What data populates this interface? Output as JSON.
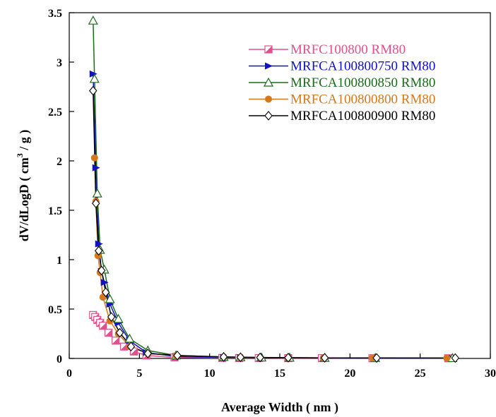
{
  "chart_data": {
    "type": "line",
    "xlabel": "Average Width ( nm )",
    "ylabel_main": "dV/dLogD ( cm",
    "ylabel_sup": "3",
    "ylabel_tail": " / g )",
    "xlim": [
      0,
      30
    ],
    "ylim": [
      0,
      3.5
    ],
    "xticks": [
      0,
      5,
      10,
      15,
      20,
      25,
      30
    ],
    "yticks": [
      0,
      0.5,
      1,
      1.5,
      2,
      2.5,
      3,
      3.5
    ],
    "xtick_labels": [
      "0",
      "5",
      "10",
      "15",
      "20",
      "25",
      "30"
    ],
    "ytick_labels": [
      "0",
      "0.5",
      "1",
      "1.5",
      "2",
      "2.5",
      "3",
      "3.5"
    ],
    "grid": false,
    "legend_position": "top-right",
    "series": [
      {
        "name": "MRFC100800 RM80",
        "color": "#e0508c",
        "marker": "half-square",
        "x": [
          1.7,
          1.85,
          2.0,
          2.2,
          2.4,
          2.8,
          3.3,
          3.9,
          4.6,
          5.5,
          7.5,
          10.9,
          12.1,
          13.5,
          15.6,
          18.0,
          21.6,
          27.0
        ],
        "y": [
          0.44,
          0.42,
          0.39,
          0.36,
          0.33,
          0.26,
          0.18,
          0.12,
          0.07,
          0.03,
          0.01,
          0.005,
          0.004,
          0.004,
          0.003,
          0.003,
          0.002,
          0.002
        ]
      },
      {
        "name": "MRFCA100800750 RM80",
        "color": "#1010c8",
        "marker": "half-triangle",
        "x": [
          1.7,
          1.9,
          2.1,
          2.3,
          2.5,
          2.9,
          3.5,
          4.3,
          5.5,
          7.6,
          11.0,
          12.2,
          13.7,
          15.7,
          18.2,
          21.8,
          27.3
        ],
        "y": [
          2.88,
          1.93,
          1.16,
          0.88,
          0.77,
          0.55,
          0.36,
          0.18,
          0.06,
          0.02,
          0.01,
          0.008,
          0.006,
          0.005,
          0.004,
          0.003,
          0.002
        ]
      },
      {
        "name": "MRFCA100800850 RM80",
        "color": "#1a6b1a",
        "marker": "open-triangle",
        "x": [
          1.7,
          1.8,
          2.0,
          2.2,
          2.5,
          2.9,
          3.5,
          4.3,
          5.6,
          7.6,
          11.0,
          12.2,
          13.7,
          15.7,
          18.2,
          21.8,
          27.3
        ],
        "y": [
          3.42,
          2.83,
          1.67,
          1.1,
          0.9,
          0.6,
          0.4,
          0.2,
          0.08,
          0.03,
          0.015,
          0.012,
          0.01,
          0.008,
          0.006,
          0.005,
          0.004
        ]
      },
      {
        "name": "MRFCA100800800 RM80",
        "color": "#d4781e",
        "marker": "filled-circle",
        "x": [
          1.8,
          1.9,
          2.05,
          2.2,
          2.4,
          2.9,
          3.5,
          4.3,
          5.6,
          7.6,
          11.0,
          12.2,
          13.6,
          15.6,
          18.1,
          21.6,
          26.9
        ],
        "y": [
          2.03,
          1.59,
          1.04,
          0.87,
          0.62,
          0.38,
          0.25,
          0.12,
          0.05,
          0.03,
          0.015,
          0.012,
          0.01,
          0.008,
          0.006,
          0.005,
          0.004
        ]
      },
      {
        "name": "MRFCA100800900 RM80",
        "color": "#000000",
        "marker": "open-diamond",
        "x": [
          1.7,
          1.9,
          2.1,
          2.3,
          2.6,
          3.0,
          3.6,
          4.4,
          5.6,
          7.7,
          11.0,
          12.2,
          13.6,
          15.6,
          18.2,
          21.9,
          27.5
        ],
        "y": [
          2.71,
          1.57,
          1.09,
          0.89,
          0.67,
          0.42,
          0.26,
          0.12,
          0.05,
          0.03,
          0.015,
          0.012,
          0.01,
          0.008,
          0.006,
          0.005,
          0.004
        ]
      }
    ]
  }
}
